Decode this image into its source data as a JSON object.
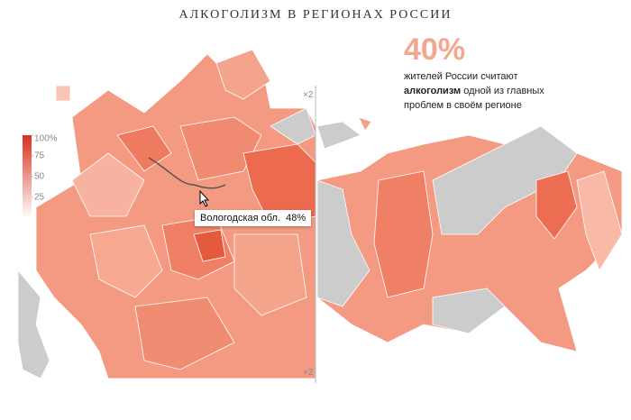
{
  "header": {
    "title": "АЛКОГОЛИЗМ В РЕГИОНАХ РОССИИ"
  },
  "lead": {
    "figure": "40%",
    "line1": "жителей России считают",
    "bold": "алкоголизм",
    "line2rest": " одной из главных",
    "line3": "проблем в своём регионе"
  },
  "legend": {
    "range": [
      0,
      100
    ],
    "ticks": [
      {
        "value": 100,
        "label": "100%"
      },
      75,
      50,
      25
    ]
  },
  "zoom": {
    "top": "×2",
    "bottom": "×2"
  },
  "tooltip": {
    "region": "Вологодская обл.",
    "value": "48%"
  }
}
